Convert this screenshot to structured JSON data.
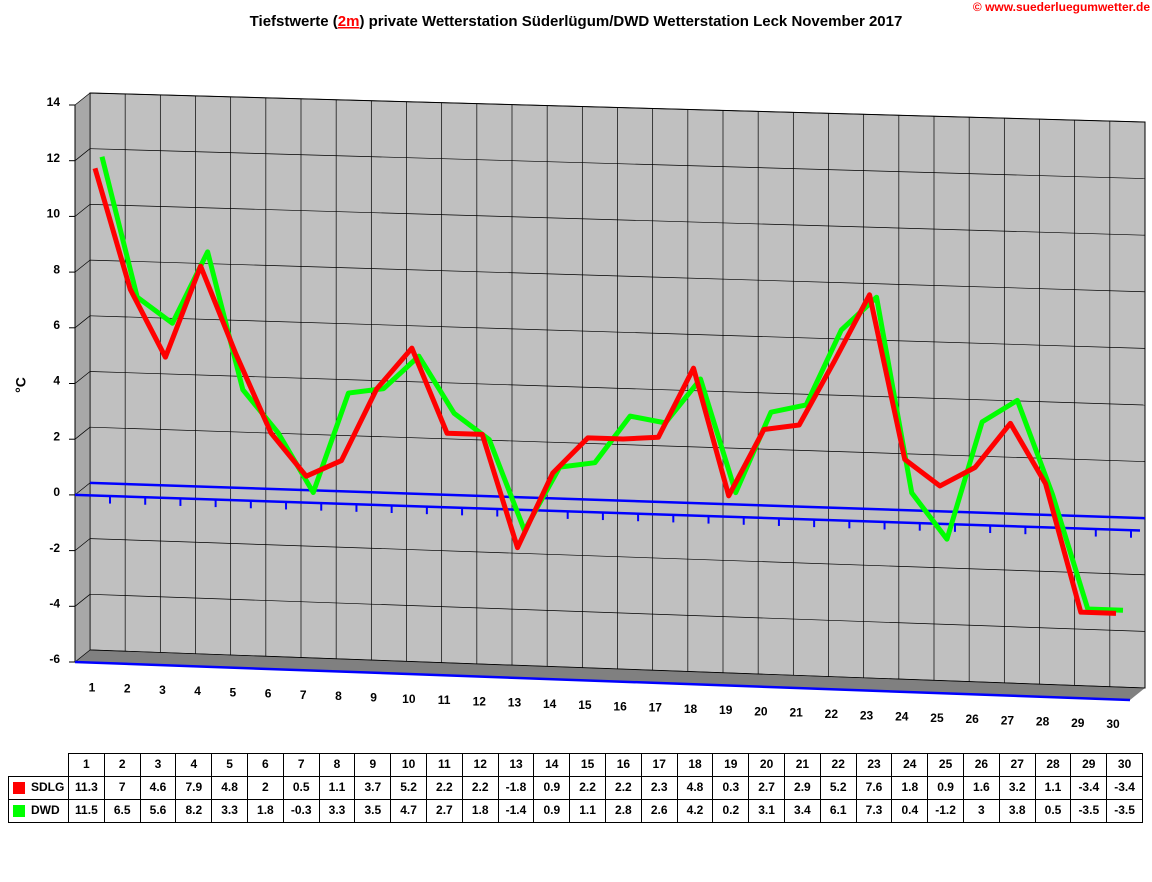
{
  "chart_data": {
    "type": "line",
    "title_prefix": "Tiefstwerte (",
    "title_highlight": "2m",
    "title_suffix": ") private Wetterstation Süderlügum/DWD Wetterstation Leck November 2017",
    "copyright": "© www.suederluegumwetter.de",
    "y_label": "°C",
    "x": [
      1,
      2,
      3,
      4,
      5,
      6,
      7,
      8,
      9,
      10,
      11,
      12,
      13,
      14,
      15,
      16,
      17,
      18,
      19,
      20,
      21,
      22,
      23,
      24,
      25,
      26,
      27,
      28,
      29,
      30
    ],
    "series": [
      {
        "name": "SDLG",
        "color": "#ff0000",
        "values": [
          11.3,
          7,
          4.6,
          7.9,
          4.8,
          2,
          0.5,
          1.1,
          3.7,
          5.2,
          2.2,
          2.2,
          -1.8,
          0.9,
          2.2,
          2.2,
          2.3,
          4.8,
          0.3,
          2.7,
          2.9,
          5.2,
          7.6,
          1.8,
          0.9,
          1.6,
          3.2,
          1.1,
          -3.4,
          -3.4
        ]
      },
      {
        "name": "DWD",
        "color": "#00ff00",
        "values": [
          11.5,
          6.5,
          5.6,
          8.2,
          3.3,
          1.8,
          -0.3,
          3.3,
          3.5,
          4.7,
          2.7,
          1.8,
          -1.4,
          0.9,
          1.1,
          2.8,
          2.6,
          4.2,
          0.2,
          3.1,
          3.4,
          6.1,
          7.3,
          0.4,
          -1.2,
          3,
          3.8,
          0.5,
          -3.5,
          -3.5
        ]
      }
    ],
    "ylim": [
      -6,
      14
    ],
    "yticks": [
      -6,
      -4,
      -2,
      0,
      2,
      4,
      6,
      8,
      10,
      12,
      14
    ],
    "grid": true
  }
}
